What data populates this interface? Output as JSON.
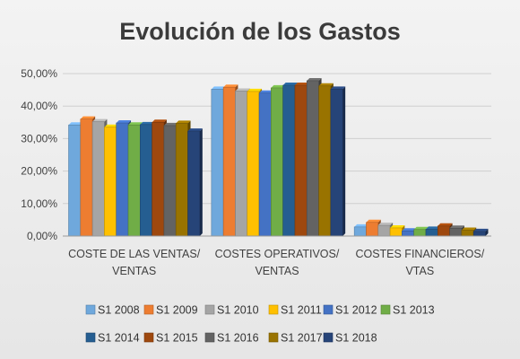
{
  "chart_data": {
    "type": "bar",
    "title": "Evolución de los Gastos",
    "ylim": [
      0,
      50
    ],
    "yticks": [
      "0,00%",
      "10,00%",
      "20,00%",
      "30,00%",
      "40,00%",
      "50,00%"
    ],
    "grid": true,
    "legend_position": "bottom",
    "categories": [
      [
        "COSTE DE LAS VENTAS/",
        "VENTAS"
      ],
      [
        "COSTES OPERATIVOS/",
        "VENTAS"
      ],
      [
        "COSTES FINANCIEROS/",
        "VTAS"
      ]
    ],
    "series": [
      {
        "name": "S1 2008",
        "color": "#6fa8dc",
        "values": [
          34.2,
          45.2,
          2.8
        ]
      },
      {
        "name": "S1 2009",
        "color": "#ed7d31",
        "values": [
          36.0,
          45.8,
          4.2
        ]
      },
      {
        "name": "S1  2010",
        "color": "#a5a5a5",
        "values": [
          35.2,
          44.6,
          3.3
        ]
      },
      {
        "name": "S1  2011",
        "color": "#ffc000",
        "values": [
          33.5,
          44.5,
          2.5
        ]
      },
      {
        "name": "S1  2012",
        "color": "#4472c4",
        "values": [
          34.8,
          44.0,
          1.6
        ]
      },
      {
        "name": "S1 2013",
        "color": "#70ad47",
        "values": [
          34.2,
          45.6,
          2.0
        ]
      },
      {
        "name": "S1 2014",
        "color": "#255e91",
        "values": [
          34.3,
          46.4,
          2.1
        ]
      },
      {
        "name": "S1 2015",
        "color": "#9e480e",
        "values": [
          35.0,
          46.4,
          3.1
        ]
      },
      {
        "name": "S1 2016",
        "color": "#636363",
        "values": [
          34.0,
          47.8,
          2.4
        ]
      },
      {
        "name": "S1 2017",
        "color": "#997300",
        "values": [
          34.7,
          46.2,
          1.8
        ]
      },
      {
        "name": "S1 2018",
        "color": "#264478",
        "values": [
          32.3,
          45.2,
          1.4
        ]
      }
    ]
  }
}
